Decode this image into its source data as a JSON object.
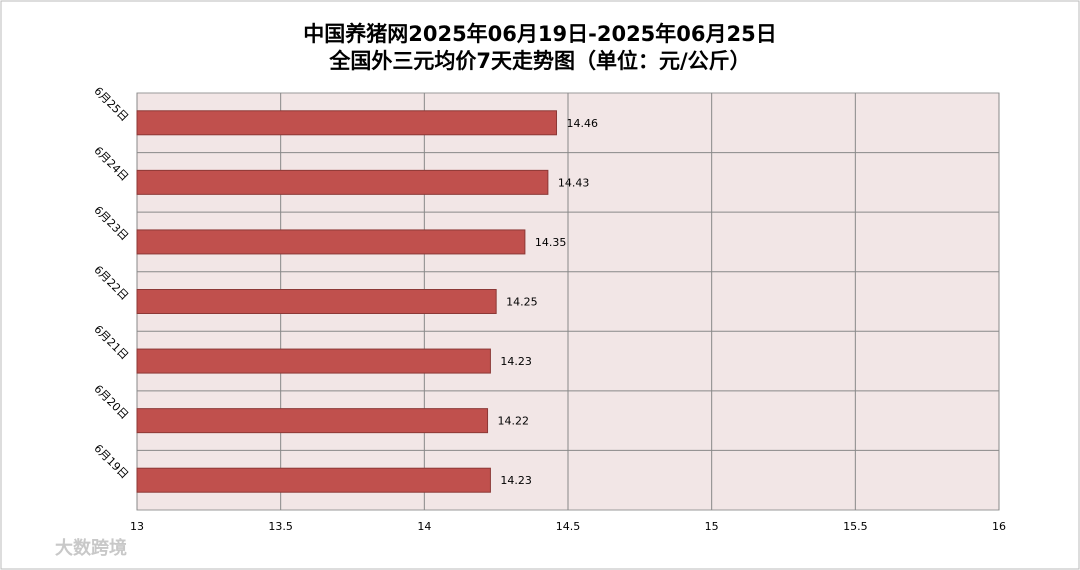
{
  "chart_data": {
    "type": "barh",
    "title": "中国养猪网2025年06月19日-2025年06月25日",
    "subtitle": "全国外三元均价7天走势图（单位：元/公斤）",
    "categories": [
      "6月25日",
      "6月24日",
      "6月23日",
      "6月22日",
      "6月21日",
      "6月20日",
      "6月19日"
    ],
    "values": [
      14.46,
      14.43,
      14.35,
      14.25,
      14.23,
      14.22,
      14.23
    ],
    "color": "#c0504d",
    "xlim": [
      13,
      16
    ],
    "xticks": [
      13,
      13.5,
      14,
      14.5,
      15,
      15.5,
      16
    ],
    "grid": true,
    "watermark": "大数跨境"
  }
}
